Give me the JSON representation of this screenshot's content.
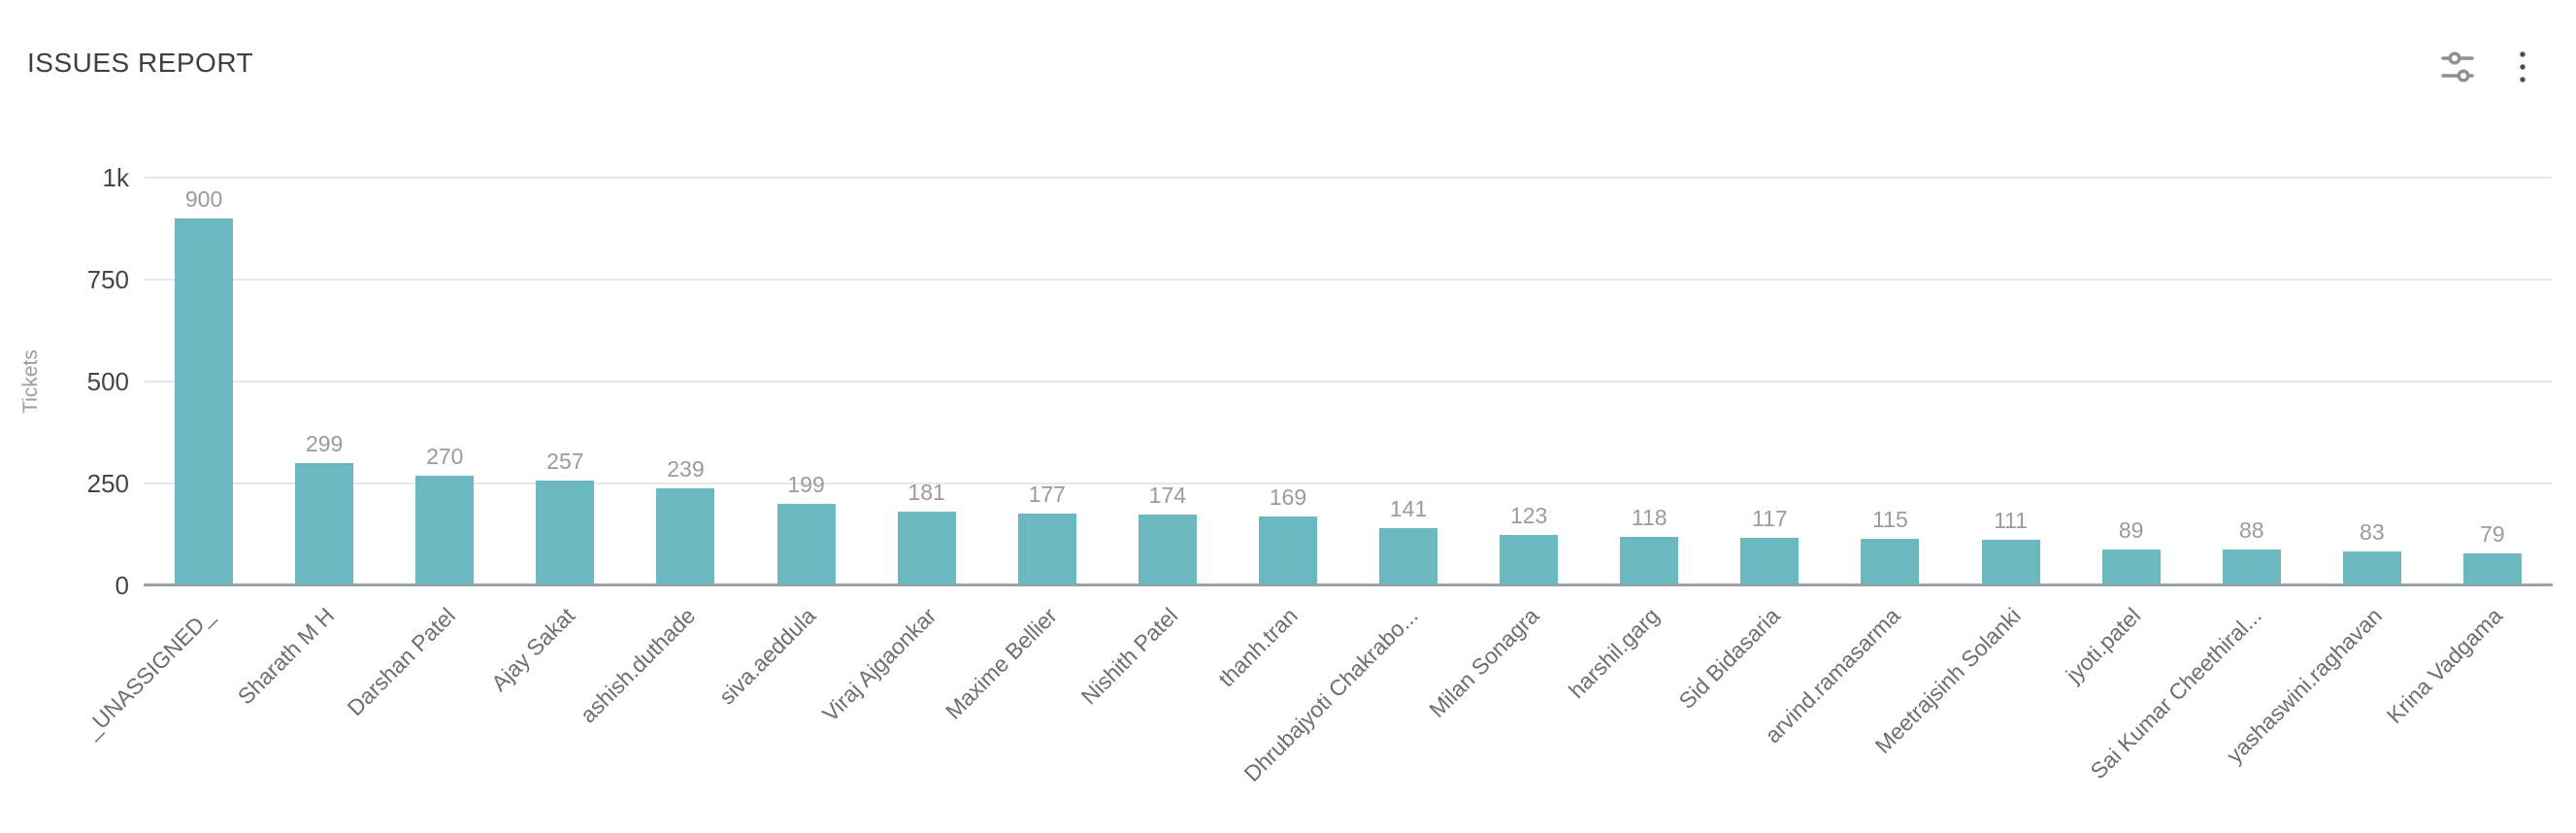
{
  "header": {
    "title": "ISSUES REPORT",
    "settings_icon": "sliders-icon",
    "menu_icon": "kebab-menu-icon"
  },
  "chart_data": {
    "type": "bar",
    "title": "ISSUES REPORT",
    "xlabel": "",
    "ylabel": "Tickets",
    "ylim": [
      0,
      1000
    ],
    "grid": true,
    "legend_position": "none",
    "bar_value_labels_shown": true,
    "x_label_rotation_deg": 45,
    "yticks": [
      {
        "label": "0",
        "value": 0
      },
      {
        "label": "250",
        "value": 250
      },
      {
        "label": "500",
        "value": 500
      },
      {
        "label": "750",
        "value": 750
      },
      {
        "label": "1k",
        "value": 1000
      }
    ],
    "categories": [
      "_UNASSIGNED_",
      "Sharath M H",
      "Darshan Patel",
      "Ajay Sakat",
      "ashish.duthade",
      "siva.aeddula",
      "Viraj Ajgaonkar",
      "Maxime Bellier",
      "Nishith Patel",
      "thanh.tran",
      "Dhrubajyoti Chakrabo...",
      "Milan Sonagra",
      "harshil.garg",
      "Sid Bidasaria",
      "arvind.ramasarma",
      "Meetrajsinh Solanki",
      "jyoti.patel",
      "Sai Kumar Cheethiral...",
      "yashaswini.raghavan",
      "Krina Vadgama"
    ],
    "values": [
      900,
      299,
      270,
      257,
      239,
      199,
      181,
      177,
      174,
      169,
      141,
      123,
      118,
      117,
      115,
      111,
      89,
      88,
      83,
      79
    ],
    "colors": {
      "bar": "#6cb8c0",
      "value_label": "#9b9b9b",
      "axis_tick_label": "#464646",
      "category_label": "#6e6e6e",
      "y_axis_title": "#9e9e9e",
      "gridline": "#e8e8e8",
      "axis_line": "#9aa0a6",
      "title": "#3d4043",
      "icon": "#8f8f8f",
      "menu_icon": "#4d4d4d"
    }
  }
}
